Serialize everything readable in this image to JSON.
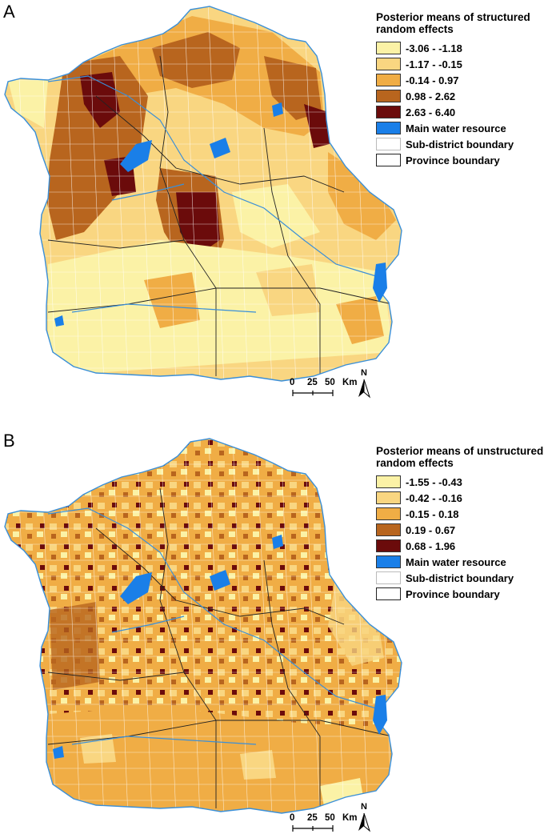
{
  "panels": [
    {
      "letter": "A",
      "legend_title": "Posterior means of structured random effects",
      "legend": [
        {
          "label": "-3.06 - -1.18",
          "color": "#fbf2a6"
        },
        {
          "label": "-1.17 - -0.15",
          "color": "#f9d681"
        },
        {
          "label": "-0.14 - 0.97",
          "color": "#f0ad45"
        },
        {
          "label": "0.98 - 2.62",
          "color": "#b8651e"
        },
        {
          "label": "2.63 - 6.40",
          "color": "#6b0b0b"
        },
        {
          "label": "Main water resource",
          "color": "#1a7fe8"
        },
        {
          "label": "Sub-district boundary",
          "color": "#ffffff"
        },
        {
          "label": "Province boundary",
          "color": "#ffffff"
        }
      ],
      "scale": {
        "ticks": [
          "0",
          "25",
          "50"
        ],
        "unit": "Km"
      },
      "north_label": "N"
    },
    {
      "letter": "B",
      "legend_title": "Posterior means of unstructured random effects",
      "legend": [
        {
          "label": "-1.55 - -0.43",
          "color": "#fbf2a6"
        },
        {
          "label": "-0.42 - -0.16",
          "color": "#f9d681"
        },
        {
          "label": "-0.15 - 0.18",
          "color": "#f0ad45"
        },
        {
          "label": "0.19 - 0.67",
          "color": "#b8651e"
        },
        {
          "label": "0.68 - 1.96",
          "color": "#6b0b0b"
        },
        {
          "label": "Main water resource",
          "color": "#1a7fe8"
        },
        {
          "label": "Sub-district boundary",
          "color": "#ffffff"
        },
        {
          "label": "Province boundary",
          "color": "#ffffff"
        }
      ],
      "scale": {
        "ticks": [
          "0",
          "25",
          "50"
        ],
        "unit": "Km"
      },
      "north_label": "N"
    }
  ]
}
